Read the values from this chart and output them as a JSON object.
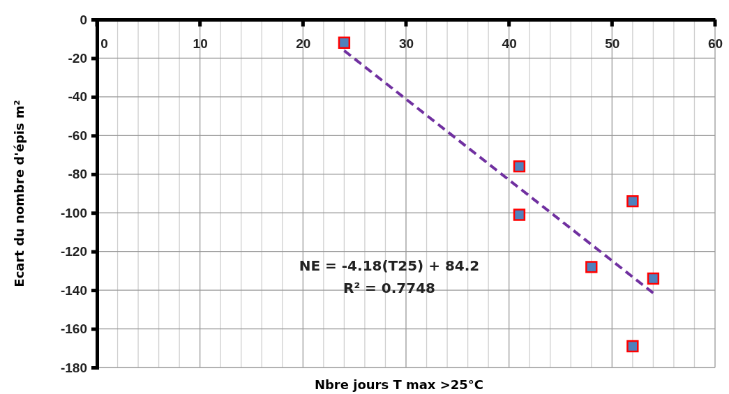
{
  "chart_data": {
    "type": "scatter",
    "xlabel": "Nbre jours  T max >25°C",
    "ylabel": "Ecart du nombre d'épis m²",
    "xlim": [
      0,
      60
    ],
    "ylim": [
      -180,
      0
    ],
    "xticks": [
      0,
      {
        "value": 2,
        "label": null
      },
      {
        "value": 4,
        "label": null
      },
      {
        "value": 6,
        "label": null
      },
      {
        "value": 8,
        "label": null
      },
      10,
      {
        "value": 12,
        "label": null
      },
      {
        "value": 14,
        "label": null
      },
      {
        "value": 16,
        "label": null
      },
      {
        "value": 18,
        "label": null
      },
      20,
      {
        "value": 22,
        "label": null
      },
      {
        "value": 24,
        "label": null
      },
      {
        "value": 26,
        "label": null
      },
      {
        "value": 28,
        "label": null
      },
      30,
      {
        "value": 32,
        "label": null
      },
      {
        "value": 34,
        "label": null
      },
      {
        "value": 36,
        "label": null
      },
      {
        "value": 38,
        "label": null
      },
      40,
      {
        "value": 42,
        "label": null
      },
      {
        "value": 44,
        "label": null
      },
      {
        "value": 46,
        "label": null
      },
      {
        "value": 48,
        "label": null
      },
      50,
      {
        "value": 52,
        "label": null
      },
      {
        "value": 54,
        "label": null
      },
      {
        "value": 56,
        "label": null
      },
      {
        "value": 58,
        "label": null
      },
      60
    ],
    "yticks": [
      0,
      -20,
      -40,
      -60,
      -80,
      -100,
      -120,
      -140,
      -160,
      -180
    ],
    "grid": true,
    "marker": "square",
    "series": [
      {
        "color": "#4f81bd",
        "x": [
          24,
          41,
          41,
          48,
          52,
          54,
          52
        ],
        "values": [
          -12,
          -76,
          -101,
          -128,
          -94,
          -134,
          -169
        ]
      },
      {
        "type": "line",
        "marker": "none",
        "color": "#7030a0",
        "line_style": "dashed",
        "x": [
          24,
          54
        ],
        "values": [
          -16.1,
          -141.5
        ]
      }
    ],
    "annotations": [
      "NE = -4.18(T25) + 84.2",
      "R² = 0.7748"
    ]
  }
}
